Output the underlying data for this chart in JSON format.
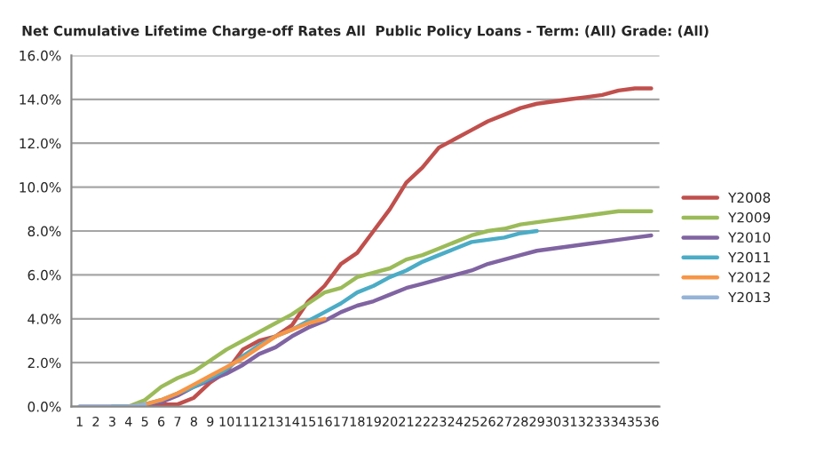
{
  "chart_data": {
    "type": "line",
    "title": "Net Cumulative Lifetime Charge-off Rates All  Public Policy Loans - Term: (All) Grade: (All)",
    "categories": [
      "1",
      "2",
      "3",
      "4",
      "5",
      "6",
      "7",
      "8",
      "9",
      "10",
      "11",
      "12",
      "13",
      "14",
      "15",
      "16",
      "17",
      "18",
      "19",
      "20",
      "21",
      "22",
      "23",
      "24",
      "25",
      "26",
      "27",
      "28",
      "29",
      "30",
      "31",
      "32",
      "33",
      "34",
      "35",
      "36"
    ],
    "series": [
      {
        "name": "Y2008",
        "color": "#c0504d",
        "values": [
          null,
          null,
          null,
          0,
          0,
          0.1,
          0.1,
          0.4,
          1.1,
          1.6,
          2.6,
          3.0,
          3.2,
          3.7,
          4.8,
          5.5,
          6.5,
          7.0,
          8.0,
          9.0,
          10.2,
          10.9,
          11.8,
          12.2,
          12.6,
          13.0,
          13.3,
          13.6,
          13.8,
          13.9,
          14.0,
          14.1,
          14.2,
          14.4,
          14.5,
          14.5
        ]
      },
      {
        "name": "Y2009",
        "color": "#9bbb59",
        "values": [
          null,
          null,
          0,
          0,
          0.3,
          0.9,
          1.3,
          1.6,
          2.1,
          2.6,
          3.0,
          3.4,
          3.8,
          4.2,
          4.7,
          5.2,
          5.4,
          5.9,
          6.1,
          6.3,
          6.7,
          6.9,
          7.2,
          7.5,
          7.8,
          8.0,
          8.1,
          8.3,
          8.4,
          8.5,
          8.6,
          8.7,
          8.8,
          8.9,
          8.9,
          8.9
        ]
      },
      {
        "name": "Y2010",
        "color": "#8064a2",
        "values": [
          0,
          0,
          0,
          0,
          0.1,
          0.2,
          0.5,
          0.9,
          1.2,
          1.5,
          1.9,
          2.4,
          2.7,
          3.2,
          3.6,
          3.9,
          4.3,
          4.6,
          4.8,
          5.1,
          5.4,
          5.6,
          5.8,
          6.0,
          6.2,
          6.5,
          6.7,
          6.9,
          7.1,
          7.2,
          7.3,
          7.4,
          7.5,
          7.6,
          7.7,
          7.8
        ]
      },
      {
        "name": "Y2011",
        "color": "#4bacc6",
        "values": [
          null,
          null,
          0,
          0,
          0.1,
          0.3,
          0.6,
          0.9,
          1.3,
          1.7,
          2.3,
          2.8,
          3.2,
          3.5,
          3.9,
          4.3,
          4.7,
          5.2,
          5.5,
          5.9,
          6.2,
          6.6,
          6.9,
          7.2,
          7.5,
          7.6,
          7.7,
          7.9,
          8.0,
          null,
          null,
          null,
          null,
          null,
          null,
          null
        ]
      },
      {
        "name": "Y2012",
        "color": "#f79646",
        "values": [
          null,
          null,
          null,
          0,
          0.1,
          0.3,
          0.6,
          1.0,
          1.4,
          1.8,
          2.2,
          2.7,
          3.2,
          3.5,
          3.8,
          4.0,
          null,
          null,
          null,
          null,
          null,
          null,
          null,
          null,
          null,
          null,
          null,
          null,
          null,
          null,
          null,
          null,
          null,
          null,
          null,
          null
        ]
      },
      {
        "name": "Y2013",
        "color": "#95b3d7",
        "values": [
          0,
          0,
          0,
          0,
          0.1,
          null,
          null,
          null,
          null,
          null,
          null,
          null,
          null,
          null,
          null,
          null,
          null,
          null,
          null,
          null,
          null,
          null,
          null,
          null,
          null,
          null,
          null,
          null,
          null,
          null,
          null,
          null,
          null,
          null,
          null,
          null
        ]
      }
    ],
    "ylim": [
      0,
      16
    ],
    "yticks": [
      {
        "value": 0,
        "label": "0.0%"
      },
      {
        "value": 2,
        "label": "2.0%"
      },
      {
        "value": 4,
        "label": "4.0%"
      },
      {
        "value": 6,
        "label": "6.0%"
      },
      {
        "value": 8,
        "label": "8.0%"
      },
      {
        "value": 10,
        "label": "10.0%"
      },
      {
        "value": 12,
        "label": "12.0%"
      },
      {
        "value": 14,
        "label": "14.0%"
      },
      {
        "value": 16,
        "label": "16.0%"
      }
    ],
    "grid": "y",
    "legend": "right",
    "marker": "none",
    "line_style": "solid"
  }
}
